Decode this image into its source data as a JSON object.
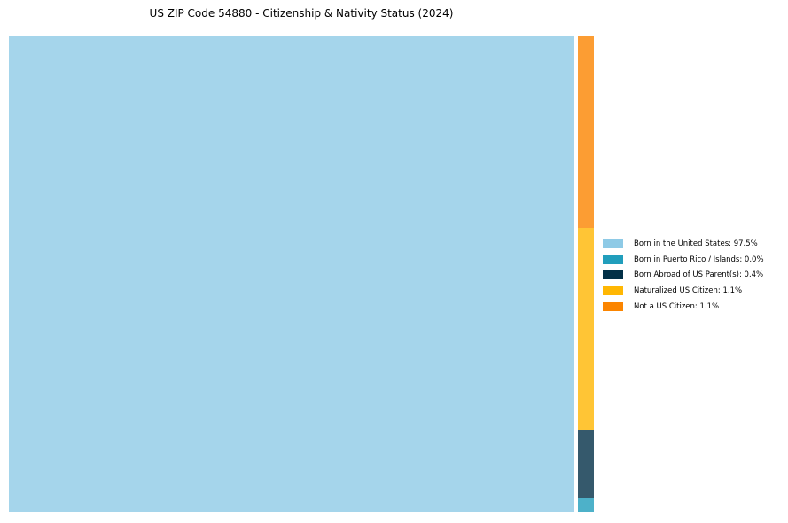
{
  "title": "US ZIP Code 54880 - Citizenship & Nativity Status (2024)",
  "chart_data": {
    "type": "treemap",
    "title": "US ZIP Code 54880 - Citizenship & Nativity Status (2024)",
    "categories": [
      "Born in the United States",
      "Born in Puerto Rico / Islands",
      "Born Abroad of US Parent(s)",
      "Naturalized US Citizen",
      "Not a US Citizen"
    ],
    "values": [
      97.5,
      0.0,
      0.4,
      1.1,
      1.1
    ],
    "value_unit": "%",
    "colors": [
      "#8ECAE6",
      "#219EBC",
      "#023047",
      "#FFB703",
      "#FB8500"
    ],
    "rect_alpha": 0.8,
    "legend_position": "center right",
    "grid": false,
    "axes": false
  },
  "legend": {
    "items": [
      {
        "label": "Born in the United States: 97.5%",
        "color": "#8ECAE6"
      },
      {
        "label": "Born in Puerto Rico / Islands: 0.0%",
        "color": "#219EBC"
      },
      {
        "label": "Born Abroad of US Parent(s): 0.4%",
        "color": "#023047"
      },
      {
        "label": "Naturalized US Citizen: 1.1%",
        "color": "#FFB703"
      },
      {
        "label": "Not a US Citizen: 1.1%",
        "color": "#FB8500"
      }
    ]
  }
}
